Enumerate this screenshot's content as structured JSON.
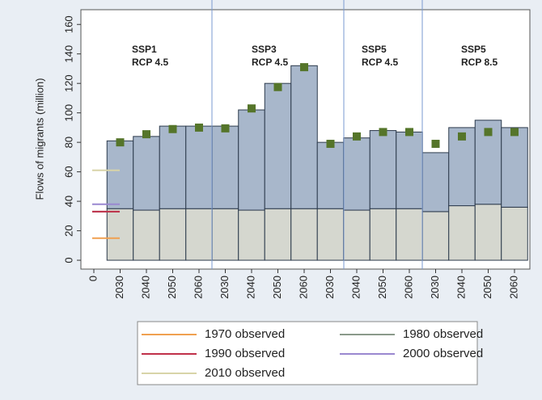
{
  "chart_data": {
    "type": "bar",
    "y_label": "Flows of migrants (million)",
    "categories": [
      "0",
      "2030",
      "2040",
      "2050",
      "2060",
      "2030",
      "2040",
      "2050",
      "2060",
      "2030",
      "2040",
      "2050",
      "2060",
      "2030",
      "2040",
      "2050",
      "2060"
    ],
    "base": {
      "color": "#d5d7cf",
      "values": [
        null,
        35,
        34,
        35,
        35,
        35,
        34,
        35,
        35,
        35,
        34,
        35,
        35,
        33,
        37,
        38,
        36
      ]
    },
    "top": {
      "color": "#a8b7cb",
      "values": [
        null,
        46,
        50,
        56,
        56,
        56,
        68,
        85,
        97,
        45,
        49,
        53,
        52,
        40,
        53,
        57,
        54
      ]
    },
    "markers": {
      "color": "#55752a",
      "values": [
        null,
        80,
        85.5,
        89,
        90,
        89.5,
        103,
        117.5,
        131,
        79,
        84,
        87,
        87,
        79,
        84,
        87,
        87
      ]
    },
    "observed": [
      {
        "name": "1970 observed",
        "color": "#f0a050",
        "value": 15
      },
      {
        "name": "1980 observed",
        "color": "#8a9a8a",
        "value": 33
      },
      {
        "name": "1990 observed",
        "color": "#c0304a",
        "value": 33
      },
      {
        "name": "2000 observed",
        "color": "#9a88d0",
        "value": 38
      },
      {
        "name": "2010 observed",
        "color": "#d8d4a8",
        "value": 61
      }
    ],
    "panels": [
      [
        "SSP1",
        "RCP 4.5"
      ],
      [
        "SSP3",
        "RCP 4.5"
      ],
      [
        "SSP5",
        "RCP 4.5"
      ],
      [
        "SSP5",
        "RCP 8.5"
      ]
    ],
    "ylim": [
      -6,
      170
    ],
    "yticks": [
      0,
      20,
      40,
      60,
      80,
      100,
      120,
      140,
      160
    ]
  }
}
